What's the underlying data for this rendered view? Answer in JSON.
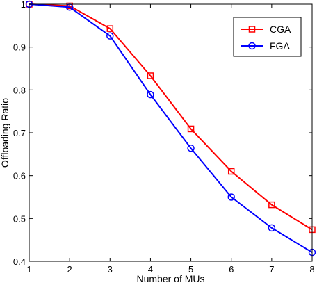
{
  "chart_data": {
    "type": "line",
    "title": "",
    "xlabel": "Number of MUs",
    "ylabel": "Offloading Ratio",
    "x": [
      1,
      2,
      3,
      4,
      5,
      6,
      7,
      8
    ],
    "xlim": [
      1,
      8
    ],
    "ylim": [
      0.4,
      1.0
    ],
    "xticks": [
      "1",
      "2",
      "3",
      "4",
      "5",
      "6",
      "7",
      "8"
    ],
    "yticks": [
      "0.4",
      "0.5",
      "0.6",
      "0.7",
      "0.8",
      "0.9",
      "1"
    ],
    "grid": false,
    "legend_position": "top-right",
    "series": [
      {
        "name": "CGA",
        "color": "#ff0000",
        "marker": "square",
        "values": [
          1.0,
          0.996,
          0.943,
          0.833,
          0.709,
          0.61,
          0.532,
          0.474
        ]
      },
      {
        "name": "FGA",
        "color": "#0000ff",
        "marker": "circle",
        "values": [
          1.0,
          0.993,
          0.926,
          0.789,
          0.664,
          0.55,
          0.478,
          0.421
        ]
      }
    ]
  }
}
